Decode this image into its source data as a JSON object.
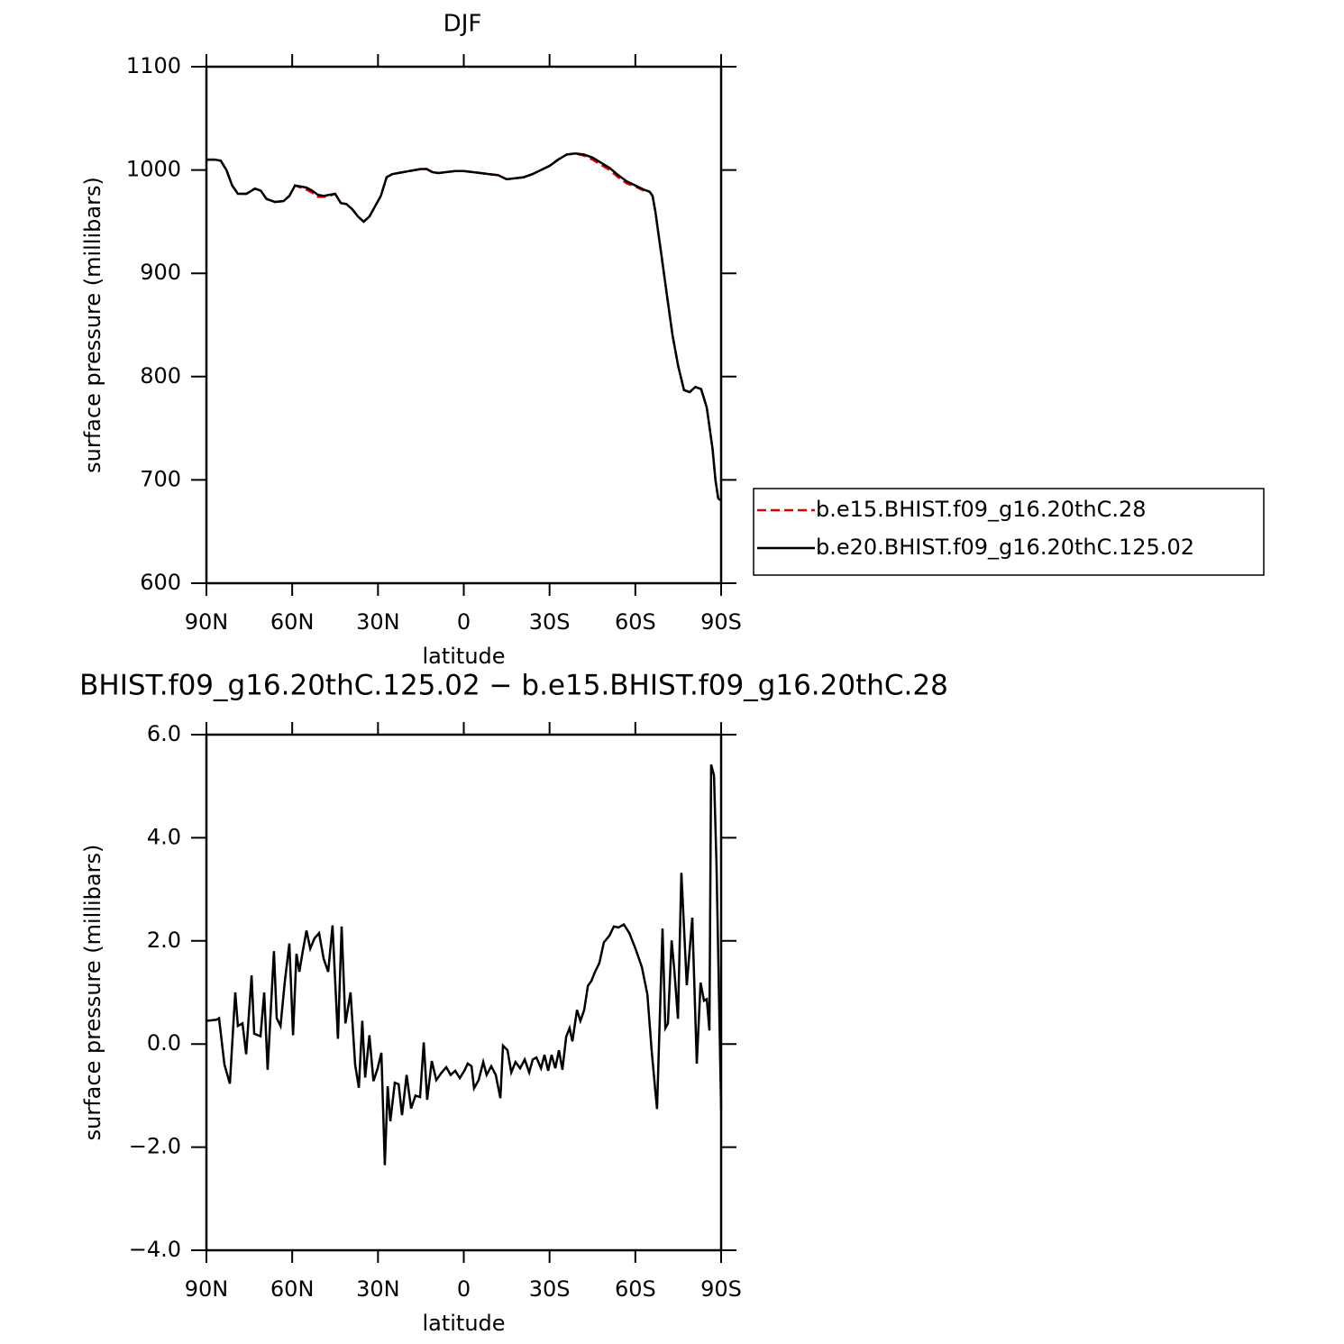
{
  "chart_data": [
    {
      "type": "line",
      "title": "DJF",
      "xlabel": "latitude",
      "ylabel": "surface pressure (millibars)",
      "x": [
        90,
        87,
        85,
        83,
        81,
        79,
        76,
        73,
        71,
        69,
        66,
        63,
        61,
        59,
        57,
        55,
        53,
        51,
        49,
        47,
        45,
        43,
        41,
        39,
        37,
        35,
        33,
        31,
        29,
        27,
        25,
        23,
        21,
        19,
        17,
        15,
        13,
        11,
        9,
        6,
        3,
        0,
        -3,
        -6,
        -9,
        -12,
        -15,
        -18,
        -21,
        -24,
        -27,
        -30,
        -33,
        -36,
        -39,
        -42,
        -45,
        -48,
        -51,
        -54,
        -57,
        -60,
        -63,
        -65,
        -66,
        -67,
        -69,
        -71,
        -73,
        -75,
        -77,
        -79,
        -81,
        -83,
        -85,
        -87,
        -88,
        -89,
        -90
      ],
      "series": [
        {
          "name": "b.e15.BHIST.f09_g16.20thC.28",
          "color": "#e00000",
          "dash": "dashed",
          "values": [
            1010,
            1010,
            1009,
            1000,
            985,
            977,
            977,
            982,
            980,
            972,
            969,
            970,
            975,
            985,
            983,
            981,
            978,
            974,
            974,
            975,
            977,
            968,
            967,
            962,
            955,
            950,
            955,
            965,
            975,
            993,
            996,
            997,
            998,
            999,
            1000,
            1001,
            1001,
            998,
            997,
            998,
            999,
            999,
            998,
            997,
            996,
            995,
            991,
            992,
            993,
            996,
            1000,
            1004,
            1010,
            1015,
            1016,
            1014,
            1010,
            1005,
            1000,
            993,
            987,
            984,
            980,
            979,
            975,
            960,
            920,
            880,
            840,
            810,
            787,
            785,
            790,
            788,
            770,
            730,
            700,
            682,
            680
          ]
        },
        {
          "name": "b.e20.BHIST.f09_g16.20thC.125.02",
          "color": "#000000",
          "dash": "solid",
          "values": [
            1010,
            1010,
            1009,
            1000,
            985,
            977,
            977,
            982,
            980,
            972,
            969,
            970,
            975,
            985,
            984,
            983,
            980,
            976,
            975,
            976,
            977,
            968,
            967,
            962,
            955,
            950,
            955,
            965,
            975,
            993,
            996,
            997,
            998,
            999,
            1000,
            1001,
            1001,
            998,
            997,
            998,
            999,
            999,
            998,
            997,
            996,
            995,
            991,
            992,
            993,
            996,
            1000,
            1004,
            1010,
            1015,
            1016,
            1015,
            1012,
            1007,
            1002,
            995,
            989,
            985,
            981,
            979,
            975,
            960,
            920,
            880,
            840,
            810,
            787,
            785,
            790,
            788,
            770,
            730,
            700,
            682,
            680
          ]
        }
      ],
      "xlim": [
        90,
        -90
      ],
      "xticks": [
        {
          "value": 90,
          "label": "90N"
        },
        {
          "value": 60,
          "label": "60N"
        },
        {
          "value": 30,
          "label": "30N"
        },
        0,
        {
          "value": -30,
          "label": "30S"
        },
        {
          "value": -60,
          "label": "60S"
        },
        {
          "value": -90,
          "label": "90S"
        }
      ],
      "ylim": [
        600,
        1100
      ],
      "yticks": [
        600,
        700,
        800,
        900,
        1000,
        1100
      ],
      "legend": "right"
    },
    {
      "type": "line",
      "title": "BHIST.f09_g16.20thC.125.02 − b.e15.BHIST.f09_g16.20thC.28",
      "xlabel": "latitude",
      "ylabel": "surface pressure (millibars)",
      "x": [
        90,
        86.5,
        85.6,
        83.7,
        81.8,
        79.9,
        79,
        77.4,
        76.1,
        74.2,
        73.3,
        71.1,
        69.8,
        68.6,
        66.4,
        65.4,
        64.1,
        62.6,
        61,
        59.7,
        58.5,
        57.5,
        56.3,
        55,
        53.7,
        52.2,
        50.6,
        49,
        47.4,
        45.9,
        44,
        42.7,
        41.4,
        39.6,
        38,
        36.7,
        35.5,
        34.5,
        33,
        31.6,
        30.1,
        28.8,
        27.6,
        26.6,
        25.7,
        24.1,
        22.8,
        21.6,
        20,
        18.4,
        16.9,
        15.3,
        14,
        12.8,
        11.2,
        9.6,
        7.7,
        6.1,
        4.6,
        3,
        1.4,
        -0.2,
        -1.4,
        -2.7,
        -3.6,
        -5.2,
        -6.8,
        -8,
        -9.6,
        -11.2,
        -12.8,
        -13.7,
        -15.3,
        -16.6,
        -18.1,
        -19.7,
        -21.3,
        -22.9,
        -24.1,
        -25.4,
        -27,
        -28.2,
        -29.5,
        -30.7,
        -32,
        -33.3,
        -34.5,
        -35.8,
        -37,
        -38,
        -39.6,
        -40.8,
        -42.1,
        -43.4,
        -44.6,
        -45.9,
        -47.4,
        -49,
        -50.9,
        -52.5,
        -54.1,
        -56,
        -57.9,
        -60.1,
        -62.3,
        -64.2,
        -65.7,
        -67,
        -67.6,
        -69.5,
        -70.5,
        -71.4,
        -72.7,
        -73.6,
        -74.9,
        -76.1,
        -78,
        -79.9,
        -81.5,
        -82.8,
        -84,
        -85,
        -85.9,
        -86.5,
        -87.5,
        -88.4,
        -90
      ],
      "values": [
        0.45,
        0.47,
        0.5,
        -0.4,
        -0.77,
        1.0,
        0.35,
        0.4,
        -0.2,
        1.33,
        0.2,
        0.15,
        1.0,
        -0.5,
        1.8,
        0.5,
        0.35,
        1.2,
        1.95,
        0.17,
        1.75,
        1.4,
        1.8,
        2.2,
        1.85,
        2.05,
        2.15,
        1.65,
        1.4,
        2.3,
        0.1,
        2.28,
        0.4,
        1.0,
        -0.4,
        -0.85,
        0.45,
        -0.65,
        0.17,
        -0.72,
        -0.47,
        -0.17,
        -2.35,
        -0.82,
        -1.5,
        -0.75,
        -0.78,
        -1.38,
        -0.6,
        -1.25,
        -1.0,
        -1.03,
        0.03,
        -1.08,
        -0.33,
        -0.7,
        -0.55,
        -0.45,
        -0.6,
        -0.52,
        -0.66,
        -0.52,
        -0.38,
        -0.43,
        -0.86,
        -0.7,
        -0.35,
        -0.6,
        -0.43,
        -0.6,
        -1.05,
        -0.03,
        -0.12,
        -0.55,
        -0.35,
        -0.47,
        -0.3,
        -0.55,
        -0.3,
        -0.26,
        -0.47,
        -0.21,
        -0.52,
        -0.21,
        -0.47,
        -0.12,
        -0.5,
        0.14,
        0.31,
        0.05,
        0.66,
        0.45,
        0.66,
        1.13,
        1.22,
        1.4,
        1.57,
        1.97,
        2.1,
        2.28,
        2.26,
        2.32,
        2.15,
        1.84,
        1.49,
        0.96,
        -0.12,
        -0.91,
        -1.26,
        2.24,
        0.31,
        0.4,
        2.01,
        1.45,
        0.49,
        3.32,
        1.14,
        2.45,
        -0.38,
        1.19,
        0.84,
        0.87,
        0.26,
        5.42,
        5.21,
        3.46,
        -1.26
      ],
      "color": "#000000",
      "xlim": [
        90,
        -90
      ],
      "xticks": [
        {
          "value": 90,
          "label": "90N"
        },
        {
          "value": 60,
          "label": "60N"
        },
        {
          "value": 30,
          "label": "30N"
        },
        0,
        {
          "value": -30,
          "label": "30S"
        },
        {
          "value": -60,
          "label": "60S"
        },
        {
          "value": -90,
          "label": "90S"
        }
      ],
      "ylim": [
        -4,
        6
      ],
      "yticks": [
        {
          "value": -4,
          "label": "−4.0"
        },
        {
          "value": -2,
          "label": "−2.0"
        },
        {
          "value": 0,
          "label": "0.0"
        },
        {
          "value": 2,
          "label": "2.0"
        },
        {
          "value": 4,
          "label": "4.0"
        },
        {
          "value": 6,
          "label": "6.0"
        }
      ]
    }
  ]
}
